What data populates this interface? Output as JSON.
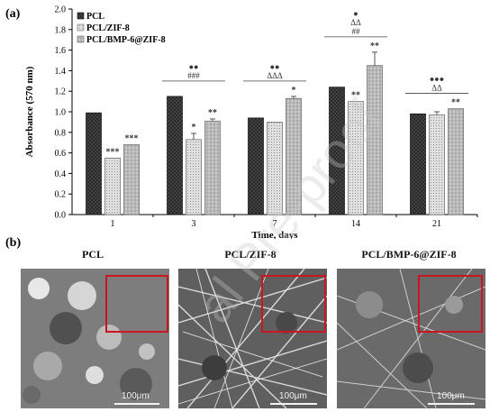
{
  "panel_a_label": "(a)",
  "panel_b_label": "(b)",
  "chart_data": {
    "type": "bar",
    "xlabel": "Time, days",
    "ylabel": "Absorbance (570 nm)",
    "ylim": [
      0,
      2.0
    ],
    "yticks": [
      "0.0",
      "0.2",
      "0.4",
      "0.6",
      "0.8",
      "1.0",
      "1.2",
      "1.4",
      "1.6",
      "1.8",
      "2.0"
    ],
    "categories": [
      "1",
      "3",
      "7",
      "14",
      "21"
    ],
    "grid": false,
    "legend_position": "top-left",
    "series": [
      {
        "name": "PCL",
        "values": [
          0.99,
          1.15,
          0.94,
          1.24,
          0.98
        ],
        "errors": [
          0.0,
          0.0,
          0.0,
          0.0,
          0.0
        ],
        "markers": [
          "",
          "",
          "",
          "",
          ""
        ]
      },
      {
        "name": "PCL/ZIF-8",
        "values": [
          0.55,
          0.73,
          0.9,
          1.1,
          0.97
        ],
        "errors": [
          0.0,
          0.06,
          0.0,
          0.0,
          0.03
        ],
        "markers": [
          "***",
          "*",
          "",
          "**",
          ""
        ]
      },
      {
        "name": "PCL/BMP-6@ZIF-8",
        "values": [
          0.68,
          0.91,
          1.13,
          1.45,
          1.03
        ],
        "errors": [
          0.0,
          0.02,
          0.02,
          0.13,
          0.0
        ],
        "markers": [
          "***",
          "**",
          "*",
          "**",
          "**"
        ]
      }
    ],
    "group_annotations": [
      {
        "category": "1",
        "lines": []
      },
      {
        "category": "3",
        "lines": [
          "●●",
          "###"
        ]
      },
      {
        "category": "7",
        "lines": [
          "●●",
          "ΔΔΔ"
        ]
      },
      {
        "category": "14",
        "lines": [
          "●",
          "ΔΔ",
          "##"
        ]
      },
      {
        "category": "21",
        "lines": [
          "●●●",
          "ΔΔ"
        ]
      }
    ]
  },
  "sem": {
    "titles": [
      "PCL",
      "PCL/ZIF-8",
      "PCL/BMP-6@ZIF-8"
    ],
    "scale_label": "100μm"
  },
  "watermark": "al Pre-proof"
}
